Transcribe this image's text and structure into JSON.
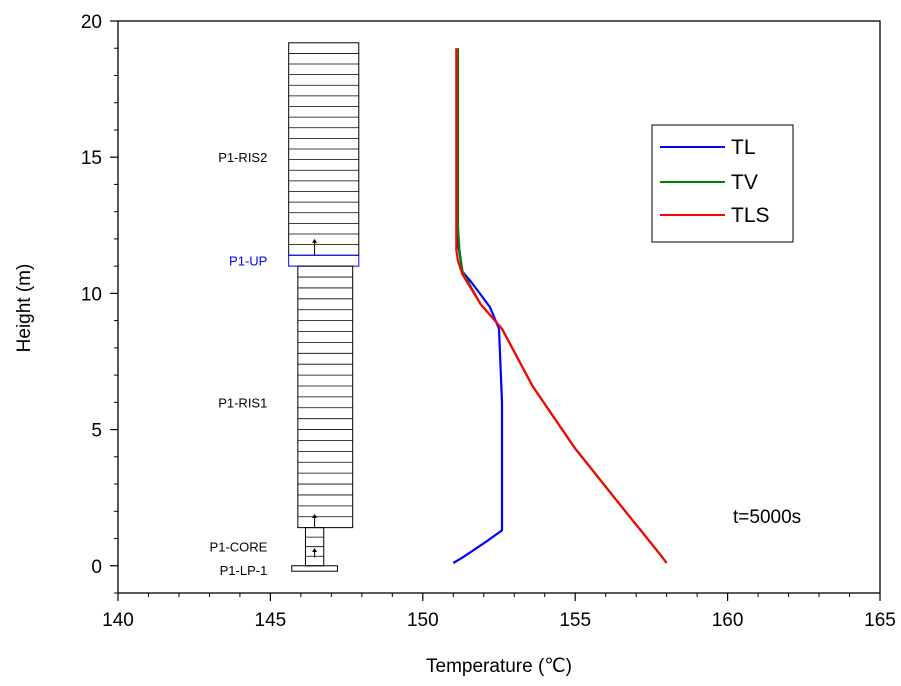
{
  "chart_data": {
    "type": "line",
    "xlabel": "Temperature (℃)",
    "ylabel": "Height (m)",
    "xlim": [
      140,
      165
    ],
    "ylim": [
      -1,
      20
    ],
    "xticks": [
      "140",
      "145",
      "150",
      "155",
      "160",
      "165"
    ],
    "yticks": [
      "0",
      "5",
      "10",
      "15",
      "20"
    ],
    "grid": false,
    "legend_position": "top-right",
    "annotation": "t=5000s",
    "series": [
      {
        "name": "TL",
        "color": "#0000ff",
        "x": [
          151.0,
          151.3,
          151.7,
          152.1,
          152.6,
          152.6,
          152.6,
          152.5,
          152.2,
          151.6,
          151.3,
          151.2,
          151.15,
          151.15,
          151.15,
          151.15
        ],
        "y": [
          0.1,
          0.3,
          0.6,
          0.9,
          1.3,
          3.0,
          6.0,
          8.7,
          9.5,
          10.4,
          10.8,
          11.5,
          11.8,
          13.0,
          16.0,
          19.0
        ]
      },
      {
        "name": "TV",
        "color": "#008000",
        "x": [
          158.0,
          157.8,
          156.5,
          155.0,
          153.6,
          152.6,
          151.9,
          151.3,
          151.2,
          151.15,
          151.15,
          151.15
        ],
        "y": [
          0.1,
          0.4,
          2.2,
          4.3,
          6.6,
          8.7,
          9.6,
          10.8,
          11.6,
          12.5,
          15.0,
          19.0
        ]
      },
      {
        "name": "TLS",
        "color": "#ff0000",
        "x": [
          158.0,
          157.8,
          156.5,
          155.0,
          153.6,
          152.6,
          151.9,
          151.3,
          151.15,
          151.1,
          151.1,
          151.1
        ],
        "y": [
          0.1,
          0.4,
          2.2,
          4.3,
          6.6,
          8.7,
          9.6,
          10.7,
          11.2,
          11.6,
          15.0,
          19.0
        ]
      }
    ],
    "components": [
      {
        "name": "P1-RIS2",
        "color": "#000000",
        "x0": 145.6,
        "x1": 147.9,
        "y0": 11.4,
        "y1": 19.2,
        "divisions": 20,
        "label_y": 15.0
      },
      {
        "name": "P1-UP",
        "color": "#0000ff",
        "x0": 145.6,
        "x1": 147.9,
        "y0": 11.0,
        "y1": 11.4,
        "divisions": 1,
        "label_y": 11.2
      },
      {
        "name": "P1-RIS1",
        "color": "#000000",
        "x0": 145.9,
        "x1": 147.7,
        "y0": 1.4,
        "y1": 11.0,
        "divisions": 24,
        "label_y": 6.0
      },
      {
        "name": "P1-CORE",
        "color": "#000000",
        "x0": 146.15,
        "x1": 146.75,
        "y0": 0.0,
        "y1": 1.4,
        "divisions": 4,
        "label_y": 0.7
      },
      {
        "name": "P1-LP-1",
        "color": "#000000",
        "x0": 145.7,
        "x1": 147.2,
        "y0": -0.2,
        "y1": 0.0,
        "divisions": 1,
        "label_y": -0.15
      }
    ],
    "arrows": [
      {
        "x": 146.45,
        "y_from": 11.4,
        "y_to": 12.0
      },
      {
        "x": 146.45,
        "y_from": 1.4,
        "y_to": 1.9
      },
      {
        "x": 146.45,
        "y_from": 0.3,
        "y_to": 0.65
      }
    ]
  }
}
